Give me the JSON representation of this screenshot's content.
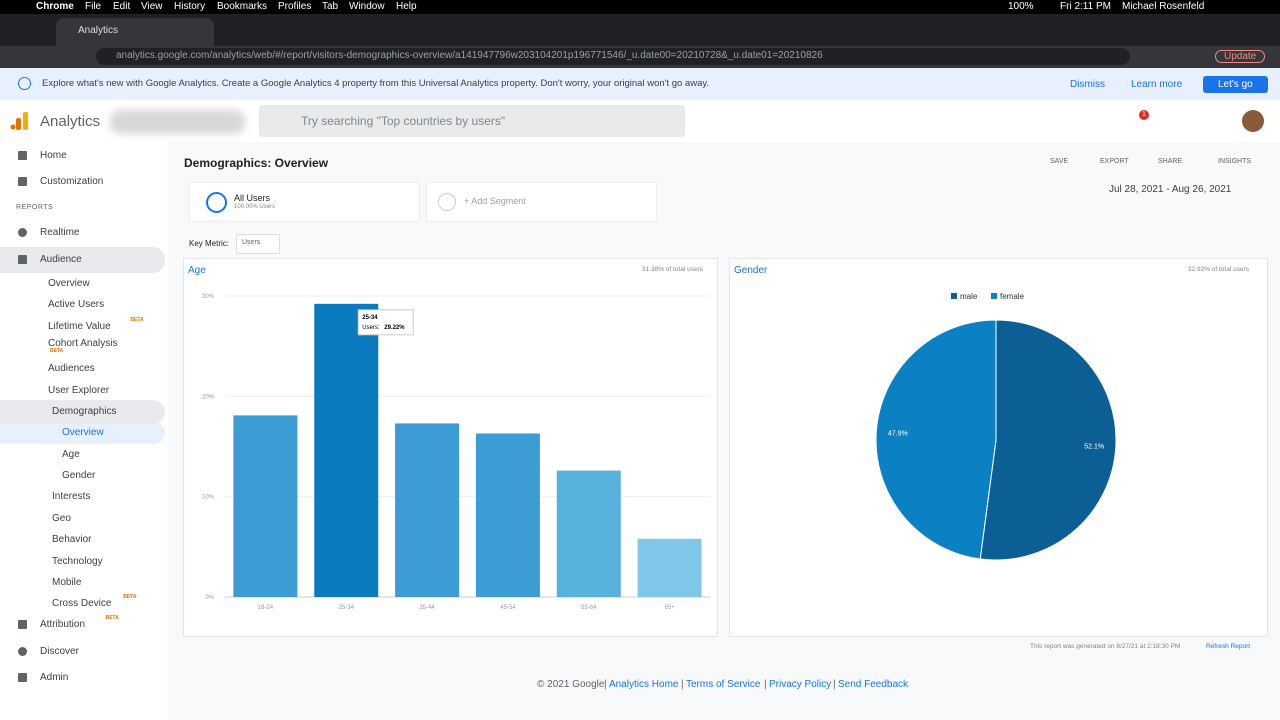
{
  "menubar": {
    "app": "Chrome",
    "menus": [
      "File",
      "Edit",
      "View",
      "History",
      "Bookmarks",
      "Profiles",
      "Tab",
      "Window",
      "Help"
    ],
    "battery": "100%",
    "clock": "Fri 2:11 PM",
    "user": "Michael Rosenfeld"
  },
  "browser": {
    "tab": "Analytics",
    "url": "analytics.google.com/analytics/web/#/report/visitors-demographics-overview/a141947796w203104201p196771546/_u.date00=20210728&_u.date01=20210826",
    "update": "Update"
  },
  "banner": {
    "text": "Explore what's new with Google Analytics. Create a Google Analytics 4 property from this Universal Analytics property. Don't worry, your original won't go away.",
    "dismiss": "Dismiss",
    "learn_more": "Learn more",
    "lets_go": "Let's go"
  },
  "header": {
    "product": "Analytics",
    "search_placeholder": "Try searching \"Top countries by users\"",
    "notifications": "1"
  },
  "sidebar": {
    "items": [
      {
        "label": "Home"
      },
      {
        "label": "Customization"
      },
      {
        "label": "REPORTS"
      },
      {
        "label": "Realtime"
      },
      {
        "label": "Audience"
      },
      {
        "label": "Overview"
      },
      {
        "label": "Active Users"
      },
      {
        "label": "Lifetime Value",
        "badge": "BETA"
      },
      {
        "label": "Cohort Analysis",
        "badge": "BETA"
      },
      {
        "label": "Audiences"
      },
      {
        "label": "User Explorer"
      },
      {
        "label": "Demographics"
      },
      {
        "label": "Overview"
      },
      {
        "label": "Age"
      },
      {
        "label": "Gender"
      },
      {
        "label": "Interests"
      },
      {
        "label": "Geo"
      },
      {
        "label": "Behavior"
      },
      {
        "label": "Technology"
      },
      {
        "label": "Mobile"
      },
      {
        "label": "Cross Device",
        "badge": "BETA"
      },
      {
        "label": "Attribution",
        "badge": "BETA"
      },
      {
        "label": "Discover"
      },
      {
        "label": "Admin"
      }
    ]
  },
  "report": {
    "title": "Demographics: Overview",
    "actions": [
      "SAVE",
      "EXPORT",
      "SHARE",
      "INSIGHTS"
    ],
    "date_range": "Jul 28, 2021 - Aug 26, 2021",
    "segment": {
      "name": "All Users",
      "detail": "100.00% Users"
    },
    "add_segment": "+ Add Segment",
    "key_metric_label": "Key Metric:",
    "key_metric": "Users",
    "generated": "This report was generated on 8/27/21 at 2:18:30 PM",
    "refresh": "Refresh Report"
  },
  "chart_data": [
    {
      "type": "bar",
      "title": "Age",
      "subtitle": "31.38% of total users",
      "categories": [
        "18-24",
        "25-34",
        "35-44",
        "45-54",
        "55-64",
        "65+"
      ],
      "values": [
        18.1,
        29.22,
        17.3,
        16.3,
        12.6,
        5.8
      ],
      "colors": [
        "#3b9dd4",
        "#0a7bbf",
        "#3b9dd4",
        "#3b9dd4",
        "#58b0dd",
        "#7fc6e8"
      ],
      "ylim": [
        0,
        30
      ],
      "yticks": [
        {
          "value": 0,
          "label": "0%"
        },
        {
          "value": 10,
          "label": "10%"
        },
        {
          "value": 20,
          "label": "20%"
        },
        {
          "value": 30,
          "label": "30%"
        }
      ],
      "grid": true,
      "tooltip": {
        "label": "Users:",
        "text": "29.22%"
      }
    },
    {
      "type": "pie",
      "title": "Gender",
      "subtitle": "32.92% of total users",
      "categories": [
        "male",
        "female"
      ],
      "values": [
        52.1,
        47.9
      ],
      "value_labels": [
        "52.1%",
        "47.9%"
      ],
      "colors": [
        "#0c5f95",
        "#0b80c2"
      ],
      "legend": "top"
    }
  ],
  "footer": {
    "copyright": "© 2021 Google",
    "links": [
      "Analytics Home",
      "Terms of Service",
      "Privacy Policy",
      "Send Feedback"
    ],
    "separator": "|"
  }
}
